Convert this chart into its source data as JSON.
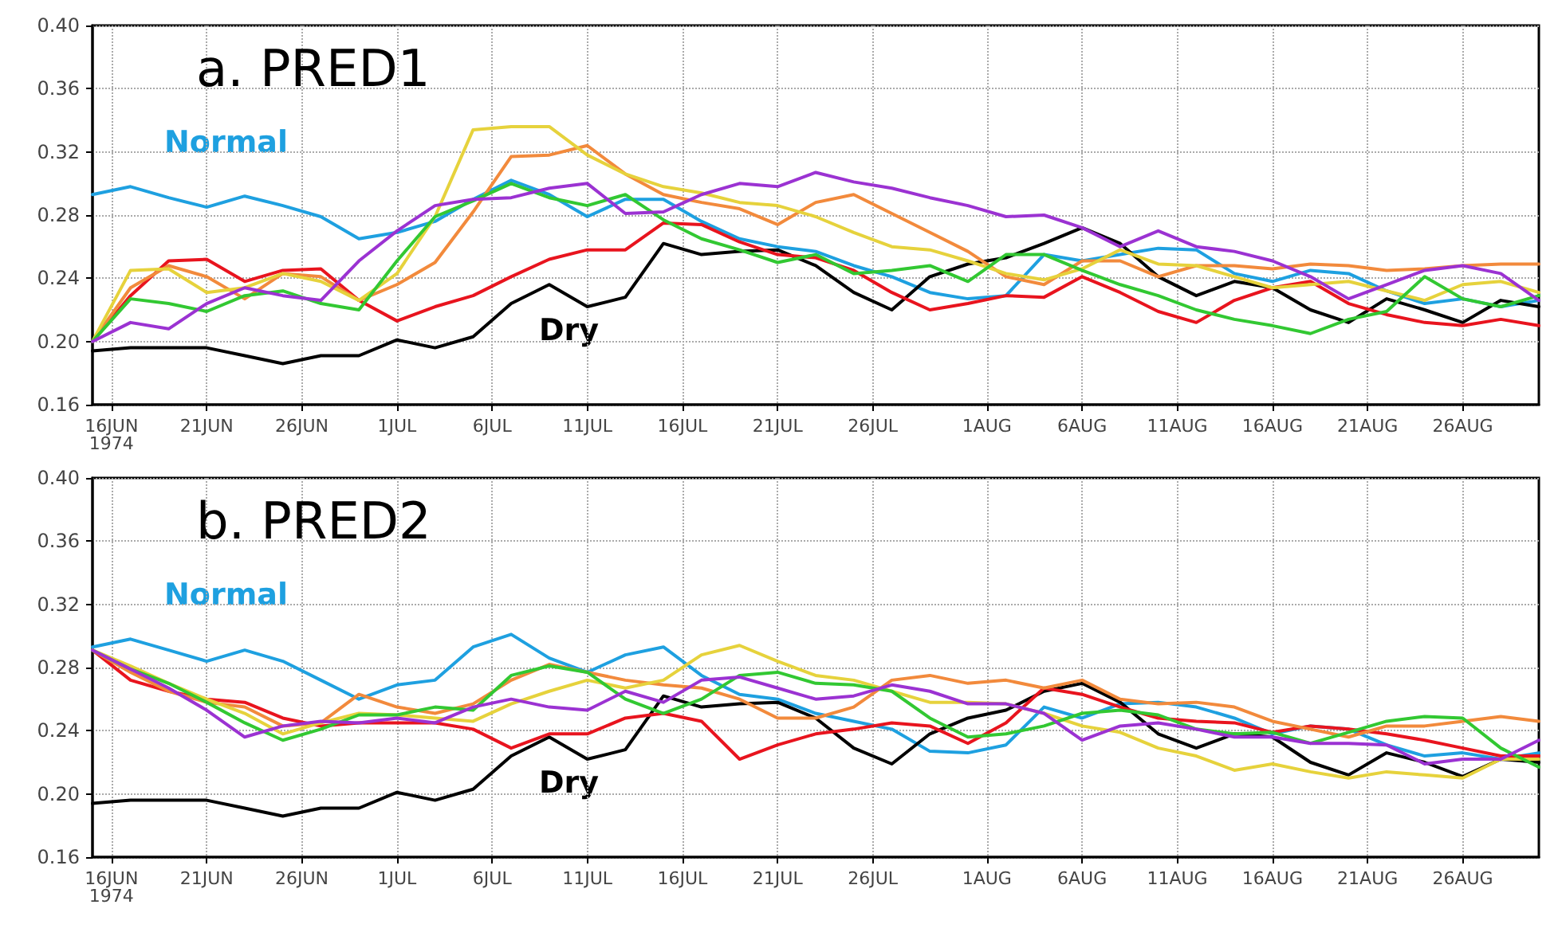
{
  "chart_data": [
    {
      "type": "line",
      "title": "a. PRED1",
      "grid": true,
      "marker": "none",
      "line_style": "solid",
      "legend": false,
      "x": [
        "1974-06-15",
        "1974-06-17",
        "1974-06-19",
        "1974-06-21",
        "1974-06-23",
        "1974-06-25",
        "1974-06-27",
        "1974-06-29",
        "1974-07-01",
        "1974-07-03",
        "1974-07-05",
        "1974-07-07",
        "1974-07-09",
        "1974-07-11",
        "1974-07-13",
        "1974-07-15",
        "1974-07-17",
        "1974-07-19",
        "1974-07-21",
        "1974-07-23",
        "1974-07-25",
        "1974-07-27",
        "1974-07-29",
        "1974-07-31",
        "1974-08-02",
        "1974-08-04",
        "1974-08-06",
        "1974-08-08",
        "1974-08-10",
        "1974-08-12",
        "1974-08-14",
        "1974-08-16",
        "1974-08-18",
        "1974-08-20",
        "1974-08-22",
        "1974-08-24",
        "1974-08-26",
        "1974-08-28",
        "1974-08-30"
      ],
      "xlim": [
        "1974-06-15",
        "1974-08-30"
      ],
      "xticks": [
        {
          "value": "1974-06-16",
          "label": "16JUN\n1974"
        },
        {
          "value": "1974-06-21",
          "label": "21JUN"
        },
        {
          "value": "1974-06-26",
          "label": "26JUN"
        },
        {
          "value": "1974-07-01",
          "label": "1JUL"
        },
        {
          "value": "1974-07-06",
          "label": "6JUL"
        },
        {
          "value": "1974-07-11",
          "label": "11JUL"
        },
        {
          "value": "1974-07-16",
          "label": "16JUL"
        },
        {
          "value": "1974-07-21",
          "label": "21JUL"
        },
        {
          "value": "1974-07-26",
          "label": "26JUL"
        },
        {
          "value": "1974-08-01",
          "label": "1AUG"
        },
        {
          "value": "1974-08-06",
          "label": "6AUG"
        },
        {
          "value": "1974-08-11",
          "label": "11AUG"
        },
        {
          "value": "1974-08-16",
          "label": "16AUG"
        },
        {
          "value": "1974-08-21",
          "label": "21AUG"
        },
        {
          "value": "1974-08-26",
          "label": "26AUG"
        }
      ],
      "ylim": [
        0.16,
        0.4
      ],
      "yticks": [
        {
          "value": 0.16,
          "label": "0.16"
        },
        {
          "value": 0.2,
          "label": "0.20"
        },
        {
          "value": 0.24,
          "label": "0.24"
        },
        {
          "value": 0.28,
          "label": "0.28"
        },
        {
          "value": 0.32,
          "label": "0.32"
        },
        {
          "value": 0.36,
          "label": "0.36"
        },
        {
          "value": 0.4,
          "label": "0.40"
        }
      ],
      "series": [
        {
          "name": "Normal",
          "color": "#1ea0e0",
          "values": [
            0.293,
            0.298,
            0.291,
            0.285,
            0.292,
            0.286,
            0.279,
            0.265,
            0.269,
            0.276,
            0.29,
            0.302,
            0.293,
            0.279,
            0.29,
            0.29,
            0.276,
            0.265,
            0.26,
            0.257,
            0.248,
            0.241,
            0.231,
            0.227,
            0.229,
            0.255,
            0.251,
            0.255,
            0.259,
            0.258,
            0.243,
            0.238,
            0.245,
            0.243,
            0.232,
            0.224,
            0.227,
            0.222,
            0.226
          ]
        },
        {
          "name": "Dry",
          "color": "#000000",
          "values": [
            0.194,
            0.196,
            0.196,
            0.196,
            0.191,
            0.186,
            0.191,
            0.191,
            0.201,
            0.196,
            0.203,
            0.224,
            0.236,
            0.222,
            0.228,
            0.262,
            0.255,
            0.257,
            0.258,
            0.248,
            0.231,
            0.22,
            0.241,
            0.249,
            0.253,
            0.262,
            0.272,
            0.262,
            0.241,
            0.229,
            0.238,
            0.234,
            0.22,
            0.212,
            0.227,
            0.22,
            0.212,
            0.226,
            0.222
          ]
        },
        {
          "color": "#e8141e",
          "values": [
            0.2,
            0.229,
            0.251,
            0.252,
            0.238,
            0.245,
            0.246,
            0.226,
            0.213,
            0.222,
            0.229,
            0.241,
            0.252,
            0.258,
            0.258,
            0.275,
            0.274,
            0.263,
            0.255,
            0.253,
            0.245,
            0.231,
            0.22,
            0.224,
            0.229,
            0.228,
            0.241,
            0.231,
            0.219,
            0.212,
            0.226,
            0.234,
            0.238,
            0.224,
            0.217,
            0.212,
            0.21,
            0.214,
            0.21
          ]
        },
        {
          "color": "#f28a3c",
          "values": [
            0.2,
            0.234,
            0.248,
            0.241,
            0.227,
            0.243,
            0.241,
            0.226,
            0.236,
            0.25,
            0.282,
            0.317,
            0.318,
            0.324,
            0.306,
            0.293,
            0.288,
            0.284,
            0.274,
            0.288,
            0.293,
            0.281,
            0.269,
            0.257,
            0.241,
            0.236,
            0.251,
            0.251,
            0.241,
            0.248,
            0.248,
            0.246,
            0.249,
            0.248,
            0.245,
            0.246,
            0.248,
            0.249,
            0.249
          ]
        },
        {
          "color": "#e6d23c",
          "values": [
            0.2,
            0.245,
            0.246,
            0.231,
            0.234,
            0.243,
            0.238,
            0.226,
            0.243,
            0.279,
            0.334,
            0.336,
            0.336,
            0.318,
            0.306,
            0.298,
            0.294,
            0.288,
            0.286,
            0.279,
            0.269,
            0.26,
            0.258,
            0.251,
            0.243,
            0.239,
            0.246,
            0.258,
            0.249,
            0.248,
            0.241,
            0.234,
            0.236,
            0.238,
            0.232,
            0.226,
            0.236,
            0.238,
            0.231
          ]
        },
        {
          "color": "#32c832",
          "values": [
            0.2,
            0.227,
            0.224,
            0.219,
            0.229,
            0.232,
            0.224,
            0.22,
            0.251,
            0.279,
            0.289,
            0.3,
            0.291,
            0.286,
            0.293,
            0.277,
            0.265,
            0.258,
            0.25,
            0.255,
            0.243,
            0.245,
            0.248,
            0.238,
            0.255,
            0.255,
            0.245,
            0.236,
            0.229,
            0.22,
            0.214,
            0.21,
            0.205,
            0.214,
            0.219,
            0.241,
            0.227,
            0.222,
            0.229
          ]
        },
        {
          "color": "#9b32d2",
          "values": [
            0.2,
            0.212,
            0.208,
            0.224,
            0.234,
            0.229,
            0.226,
            0.251,
            0.27,
            0.286,
            0.29,
            0.291,
            0.297,
            0.3,
            0.281,
            0.282,
            0.293,
            0.3,
            0.298,
            0.307,
            0.301,
            0.297,
            0.291,
            0.286,
            0.279,
            0.28,
            0.272,
            0.26,
            0.27,
            0.26,
            0.257,
            0.251,
            0.241,
            0.227,
            0.236,
            0.245,
            0.248,
            0.243,
            0.226
          ]
        }
      ]
    },
    {
      "type": "line",
      "title": "b. PRED2",
      "grid": true,
      "marker": "none",
      "line_style": "solid",
      "legend": false,
      "x": [
        "1974-06-15",
        "1974-06-17",
        "1974-06-19",
        "1974-06-21",
        "1974-06-23",
        "1974-06-25",
        "1974-06-27",
        "1974-06-29",
        "1974-07-01",
        "1974-07-03",
        "1974-07-05",
        "1974-07-07",
        "1974-07-09",
        "1974-07-11",
        "1974-07-13",
        "1974-07-15",
        "1974-07-17",
        "1974-07-19",
        "1974-07-21",
        "1974-07-23",
        "1974-07-25",
        "1974-07-27",
        "1974-07-29",
        "1974-07-31",
        "1974-08-02",
        "1974-08-04",
        "1974-08-06",
        "1974-08-08",
        "1974-08-10",
        "1974-08-12",
        "1974-08-14",
        "1974-08-16",
        "1974-08-18",
        "1974-08-20",
        "1974-08-22",
        "1974-08-24",
        "1974-08-26",
        "1974-08-28",
        "1974-08-30"
      ],
      "xlim": [
        "1974-06-15",
        "1974-08-30"
      ],
      "xticks": [
        {
          "value": "1974-06-16",
          "label": "16JUN\n1974"
        },
        {
          "value": "1974-06-21",
          "label": "21JUN"
        },
        {
          "value": "1974-06-26",
          "label": "26JUN"
        },
        {
          "value": "1974-07-01",
          "label": "1JUL"
        },
        {
          "value": "1974-07-06",
          "label": "6JUL"
        },
        {
          "value": "1974-07-11",
          "label": "11JUL"
        },
        {
          "value": "1974-07-16",
          "label": "16JUL"
        },
        {
          "value": "1974-07-21",
          "label": "21JUL"
        },
        {
          "value": "1974-07-26",
          "label": "26JUL"
        },
        {
          "value": "1974-08-01",
          "label": "1AUG"
        },
        {
          "value": "1974-08-06",
          "label": "6AUG"
        },
        {
          "value": "1974-08-11",
          "label": "11AUG"
        },
        {
          "value": "1974-08-16",
          "label": "16AUG"
        },
        {
          "value": "1974-08-21",
          "label": "21AUG"
        },
        {
          "value": "1974-08-26",
          "label": "26AUG"
        }
      ],
      "ylim": [
        0.16,
        0.4
      ],
      "yticks": [
        {
          "value": 0.16,
          "label": "0.16"
        },
        {
          "value": 0.2,
          "label": "0.20"
        },
        {
          "value": 0.24,
          "label": "0.24"
        },
        {
          "value": 0.28,
          "label": "0.28"
        },
        {
          "value": 0.32,
          "label": "0.32"
        },
        {
          "value": 0.36,
          "label": "0.36"
        },
        {
          "value": 0.4,
          "label": "0.40"
        }
      ],
      "series": [
        {
          "name": "Normal",
          "color": "#1ea0e0",
          "values": [
            0.293,
            0.298,
            0.291,
            0.284,
            0.291,
            0.284,
            0.272,
            0.26,
            0.269,
            0.272,
            0.293,
            0.301,
            0.286,
            0.277,
            0.288,
            0.293,
            0.275,
            0.263,
            0.26,
            0.251,
            0.246,
            0.241,
            0.227,
            0.226,
            0.231,
            0.255,
            0.248,
            0.257,
            0.258,
            0.255,
            0.248,
            0.238,
            0.243,
            0.241,
            0.231,
            0.224,
            0.226,
            0.222,
            0.226
          ]
        },
        {
          "name": "Dry",
          "color": "#000000",
          "values": [
            0.194,
            0.196,
            0.196,
            0.196,
            0.191,
            0.186,
            0.191,
            0.191,
            0.201,
            0.196,
            0.203,
            0.224,
            0.236,
            0.222,
            0.228,
            0.262,
            0.255,
            0.257,
            0.258,
            0.248,
            0.229,
            0.219,
            0.238,
            0.248,
            0.253,
            0.265,
            0.27,
            0.258,
            0.238,
            0.229,
            0.238,
            0.236,
            0.22,
            0.212,
            0.226,
            0.22,
            0.211,
            0.222,
            0.22
          ]
        },
        {
          "color": "#e8141e",
          "values": [
            0.291,
            0.272,
            0.265,
            0.26,
            0.258,
            0.248,
            0.243,
            0.245,
            0.245,
            0.245,
            0.241,
            0.229,
            0.238,
            0.238,
            0.248,
            0.251,
            0.246,
            0.222,
            0.231,
            0.238,
            0.241,
            0.245,
            0.243,
            0.232,
            0.245,
            0.267,
            0.263,
            0.255,
            0.248,
            0.246,
            0.245,
            0.239,
            0.243,
            0.241,
            0.238,
            0.234,
            0.229,
            0.224,
            0.224
          ]
        },
        {
          "color": "#f28a3c",
          "values": [
            0.291,
            0.277,
            0.265,
            0.258,
            0.255,
            0.243,
            0.245,
            0.263,
            0.255,
            0.251,
            0.257,
            0.272,
            0.282,
            0.277,
            0.272,
            0.269,
            0.267,
            0.26,
            0.248,
            0.248,
            0.255,
            0.272,
            0.275,
            0.27,
            0.272,
            0.267,
            0.272,
            0.26,
            0.257,
            0.258,
            0.255,
            0.246,
            0.241,
            0.236,
            0.243,
            0.243,
            0.246,
            0.249,
            0.246
          ]
        },
        {
          "color": "#e6d23c",
          "values": [
            0.291,
            0.281,
            0.27,
            0.26,
            0.251,
            0.238,
            0.245,
            0.251,
            0.25,
            0.248,
            0.246,
            0.257,
            0.265,
            0.272,
            0.267,
            0.272,
            0.288,
            0.294,
            0.284,
            0.275,
            0.272,
            0.265,
            0.258,
            0.258,
            0.257,
            0.251,
            0.243,
            0.239,
            0.229,
            0.224,
            0.215,
            0.219,
            0.214,
            0.21,
            0.214,
            0.212,
            0.21,
            0.222,
            0.222
          ]
        },
        {
          "color": "#32c832",
          "values": [
            0.291,
            0.279,
            0.27,
            0.258,
            0.245,
            0.234,
            0.241,
            0.25,
            0.25,
            0.255,
            0.253,
            0.275,
            0.281,
            0.277,
            0.26,
            0.251,
            0.26,
            0.275,
            0.277,
            0.27,
            0.269,
            0.265,
            0.248,
            0.236,
            0.238,
            0.243,
            0.251,
            0.253,
            0.25,
            0.241,
            0.238,
            0.239,
            0.232,
            0.239,
            0.246,
            0.249,
            0.248,
            0.229,
            0.217
          ]
        },
        {
          "color": "#9b32d2",
          "values": [
            0.291,
            0.279,
            0.267,
            0.253,
            0.236,
            0.243,
            0.246,
            0.245,
            0.248,
            0.245,
            0.255,
            0.26,
            0.255,
            0.253,
            0.265,
            0.258,
            0.272,
            0.274,
            0.267,
            0.26,
            0.262,
            0.269,
            0.265,
            0.257,
            0.257,
            0.251,
            0.234,
            0.243,
            0.245,
            0.241,
            0.236,
            0.236,
            0.232,
            0.232,
            0.231,
            0.219,
            0.222,
            0.222,
            0.234
          ]
        }
      ]
    }
  ]
}
